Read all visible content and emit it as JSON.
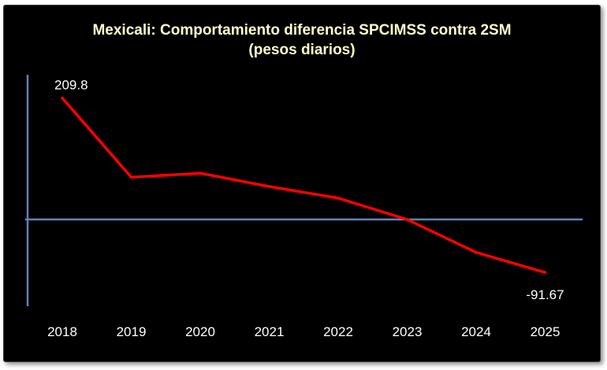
{
  "chart_data": {
    "type": "line",
    "title_lines": [
      "Mexicali: Comportamiento diferencia SPCIMSS contra 2SM",
      "(pesos diarios)"
    ],
    "categories": [
      "2018",
      "2019",
      "2020",
      "2021",
      "2022",
      "2023",
      "2024",
      "2025"
    ],
    "series": [
      {
        "name": "Diferencia SPCIMSS contra 2SM",
        "values": [
          209.8,
          73,
          80,
          57,
          37,
          0,
          -57,
          -91.67
        ],
        "color": "#ff0000"
      }
    ],
    "data_labels": [
      {
        "index": 0,
        "text": "209.8"
      },
      {
        "index": 7,
        "text": "-91.67"
      }
    ],
    "ylim": [
      -150,
      250
    ],
    "grid": false,
    "legend": "none",
    "axis_color": "#5b82c0",
    "background": "#000000",
    "title_color": "#ffffc8"
  }
}
